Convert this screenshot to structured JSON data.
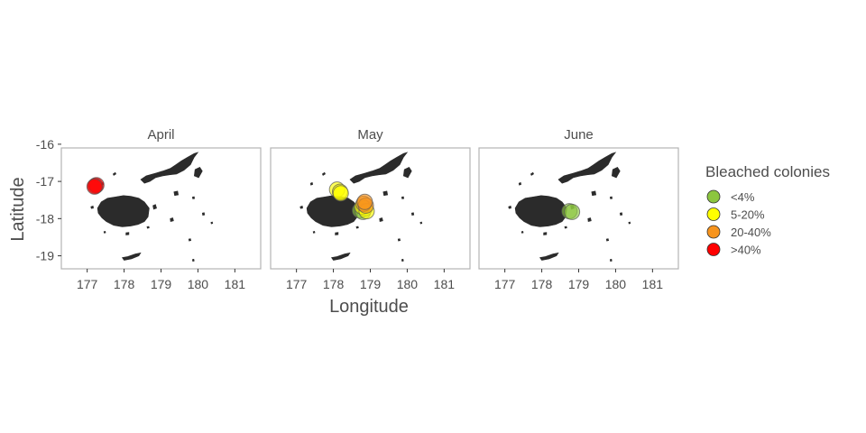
{
  "chart_data": {
    "type": "scatter",
    "xlabel": "Longitude",
    "ylabel": "Latitude",
    "xlim": [
      176.3,
      181.7
    ],
    "ylim": [
      -19.35,
      -16.1
    ],
    "xticks": [
      177,
      178,
      179,
      180,
      181
    ],
    "yticks": [
      -16,
      -17,
      -18,
      -19
    ],
    "grid": false,
    "legend_position": "right",
    "legend": {
      "title": "Bleached colonies",
      "entries": [
        {
          "label": "<4%",
          "color": "#8cc63f"
        },
        {
          "label": "5-20%",
          "color": "#ffff00"
        },
        {
          "label": "20-40%",
          "color": "#f7941d"
        },
        {
          "label": ">40%",
          "color": "#ff0000"
        }
      ]
    },
    "panels": [
      {
        "title": "April",
        "points": [
          {
            "x": 177.22,
            "y": -17.12,
            "category": ">40%"
          },
          {
            "x": 177.25,
            "y": -17.1,
            "category": ">40%"
          },
          {
            "x": 177.2,
            "y": -17.14,
            "category": ">40%"
          }
        ]
      },
      {
        "title": "May",
        "points": [
          {
            "x": 178.1,
            "y": -17.22,
            "category": "5-20%"
          },
          {
            "x": 178.18,
            "y": -17.28,
            "category": "5-20%"
          },
          {
            "x": 178.2,
            "y": -17.32,
            "category": "5-20%"
          },
          {
            "x": 178.72,
            "y": -17.78,
            "category": "<4%"
          },
          {
            "x": 178.8,
            "y": -17.82,
            "category": "<4%"
          },
          {
            "x": 178.85,
            "y": -17.72,
            "category": "5-20%"
          },
          {
            "x": 178.78,
            "y": -17.68,
            "category": "5-20%"
          },
          {
            "x": 178.9,
            "y": -17.8,
            "category": "5-20%"
          },
          {
            "x": 178.82,
            "y": -17.6,
            "category": "20-40%"
          },
          {
            "x": 178.88,
            "y": -17.65,
            "category": "20-40%"
          },
          {
            "x": 178.85,
            "y": -17.55,
            "category": "20-40%"
          }
        ]
      },
      {
        "title": "June",
        "points": [
          {
            "x": 178.75,
            "y": -17.8,
            "category": "<4%"
          },
          {
            "x": 178.82,
            "y": -17.82,
            "category": "<4%"
          }
        ]
      }
    ],
    "basemap": {
      "fill": "#2b2b2b",
      "islands": [
        {
          "name": "viti-levu",
          "coords": [
            [
              177.28,
              -17.72
            ],
            [
              177.38,
              -17.55
            ],
            [
              177.55,
              -17.45
            ],
            [
              177.75,
              -17.42
            ],
            [
              177.98,
              -17.38
            ],
            [
              178.18,
              -17.4
            ],
            [
              178.4,
              -17.45
            ],
            [
              178.55,
              -17.55
            ],
            [
              178.68,
              -17.72
            ],
            [
              178.65,
              -17.95
            ],
            [
              178.55,
              -18.08
            ],
            [
              178.38,
              -18.16
            ],
            [
              178.18,
              -18.2
            ],
            [
              177.95,
              -18.22
            ],
            [
              177.72,
              -18.18
            ],
            [
              177.52,
              -18.08
            ],
            [
              177.4,
              -17.98
            ],
            [
              177.3,
              -17.85
            ]
          ]
        },
        {
          "name": "vanua-levu",
          "coords": [
            [
              178.45,
              -16.95
            ],
            [
              178.6,
              -16.85
            ],
            [
              178.85,
              -16.78
            ],
            [
              179.05,
              -16.72
            ],
            [
              179.25,
              -16.65
            ],
            [
              179.4,
              -16.55
            ],
            [
              179.55,
              -16.45
            ],
            [
              179.72,
              -16.35
            ],
            [
              179.9,
              -16.25
            ],
            [
              180.0,
              -16.22
            ],
            [
              179.9,
              -16.35
            ],
            [
              179.8,
              -16.55
            ],
            [
              179.62,
              -16.7
            ],
            [
              179.42,
              -16.8
            ],
            [
              179.25,
              -16.82
            ],
            [
              179.05,
              -16.85
            ],
            [
              178.85,
              -16.9
            ],
            [
              178.7,
              -17.0
            ],
            [
              178.55,
              -17.05
            ]
          ]
        },
        {
          "name": "taveuni",
          "coords": [
            [
              179.92,
              -16.68
            ],
            [
              180.05,
              -16.62
            ],
            [
              180.12,
              -16.72
            ],
            [
              180.02,
              -16.9
            ],
            [
              179.9,
              -16.85
            ]
          ]
        },
        {
          "name": "kadavu",
          "coords": [
            [
              177.95,
              -19.05
            ],
            [
              178.1,
              -19.02
            ],
            [
              178.3,
              -18.95
            ],
            [
              178.45,
              -18.92
            ],
            [
              178.4,
              -19.0
            ],
            [
              178.2,
              -19.08
            ],
            [
              178.0,
              -19.12
            ]
          ]
        },
        {
          "name": "ovalau",
          "coords": [
            [
              178.78,
              -17.65
            ],
            [
              178.85,
              -17.62
            ],
            [
              178.88,
              -17.72
            ],
            [
              178.8,
              -17.75
            ]
          ]
        },
        {
          "name": "koro",
          "coords": [
            [
              179.35,
              -17.28
            ],
            [
              179.45,
              -17.26
            ],
            [
              179.47,
              -17.36
            ],
            [
              179.37,
              -17.38
            ]
          ]
        },
        {
          "name": "gau",
          "coords": [
            [
              179.25,
              -18.0
            ],
            [
              179.32,
              -17.98
            ],
            [
              179.34,
              -18.06
            ],
            [
              179.26,
              -18.08
            ]
          ]
        },
        {
          "name": "beqa",
          "coords": [
            [
              178.05,
              -18.38
            ],
            [
              178.13,
              -18.37
            ],
            [
              178.13,
              -18.43
            ],
            [
              178.05,
              -18.44
            ]
          ]
        },
        {
          "name": "yasawa-1",
          "coords": [
            [
              177.7,
              -16.8
            ],
            [
              177.76,
              -16.76
            ],
            [
              177.78,
              -16.8
            ],
            [
              177.72,
              -16.84
            ]
          ]
        },
        {
          "name": "yasawa-2",
          "coords": [
            [
              177.38,
              -17.05
            ],
            [
              177.43,
              -17.03
            ],
            [
              177.44,
              -17.08
            ],
            [
              177.39,
              -17.1
            ]
          ]
        },
        {
          "name": "mamanuca",
          "coords": [
            [
              177.1,
              -17.68
            ],
            [
              177.16,
              -17.66
            ],
            [
              177.17,
              -17.72
            ],
            [
              177.11,
              -17.73
            ]
          ]
        },
        {
          "name": "mago",
          "coords": [
            [
              179.85,
              -17.42
            ],
            [
              179.9,
              -17.41
            ],
            [
              179.91,
              -17.46
            ],
            [
              179.86,
              -17.47
            ]
          ]
        },
        {
          "name": "lau-1",
          "coords": [
            [
              180.12,
              -17.85
            ],
            [
              180.17,
              -17.84
            ],
            [
              180.18,
              -17.9
            ],
            [
              180.13,
              -17.91
            ]
          ]
        },
        {
          "name": "lau-2",
          "coords": [
            [
              179.75,
              -18.55
            ],
            [
              179.8,
              -18.54
            ],
            [
              179.81,
              -18.59
            ],
            [
              179.76,
              -18.6
            ]
          ]
        },
        {
          "name": "lau-3",
          "coords": [
            [
              180.35,
              -18.1
            ],
            [
              180.39,
              -18.09
            ],
            [
              180.4,
              -18.13
            ],
            [
              180.36,
              -18.14
            ]
          ]
        },
        {
          "name": "nukulau",
          "coords": [
            [
              178.62,
              -18.22
            ],
            [
              178.67,
              -18.21
            ],
            [
              178.68,
              -18.25
            ],
            [
              178.63,
              -18.26
            ]
          ]
        },
        {
          "name": "lautoka-islet",
          "coords": [
            [
              177.45,
              -18.35
            ],
            [
              177.49,
              -18.34
            ],
            [
              177.5,
              -18.38
            ],
            [
              177.46,
              -18.39
            ]
          ]
        },
        {
          "name": "moala",
          "coords": [
            [
              179.85,
              -19.1
            ],
            [
              179.89,
              -19.09
            ],
            [
              179.9,
              -19.14
            ],
            [
              179.86,
              -19.15
            ]
          ]
        }
      ]
    }
  }
}
